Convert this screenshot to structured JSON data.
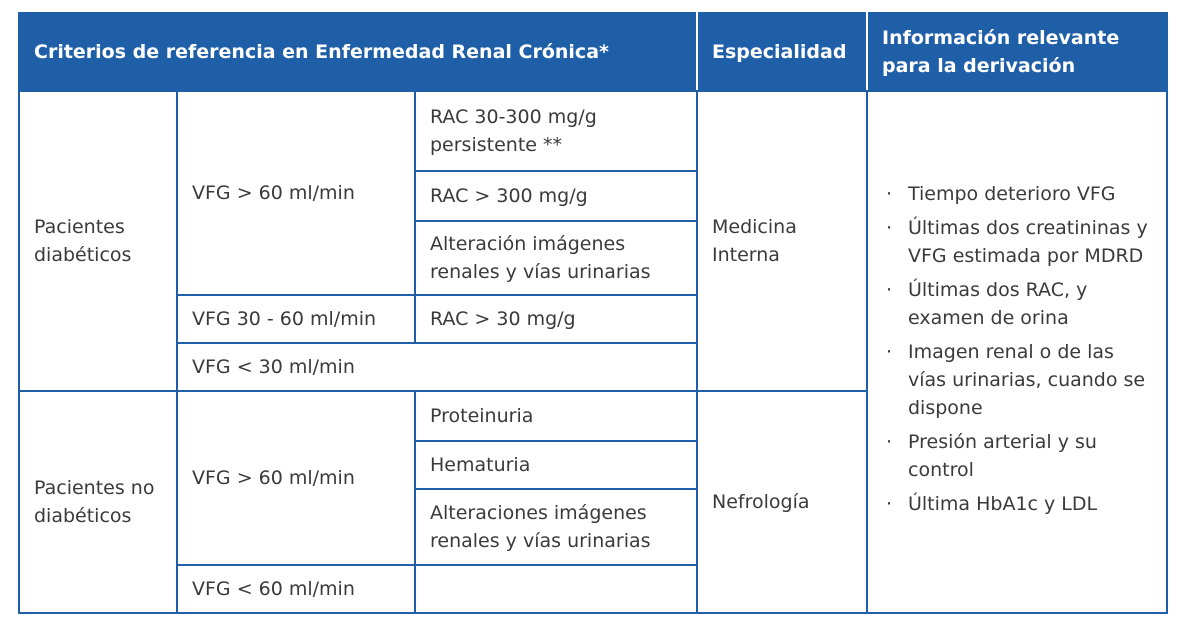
{
  "header": {
    "criteria": "Criterios de referencia en Enfermedad Renal Crónica*",
    "specialty": "Especialidad",
    "info": "Información relevante para la derivación"
  },
  "groups": [
    {
      "label": "Pacientes diabéticos"
    },
    {
      "label": "Pacientes no diabéticos"
    }
  ],
  "rows": {
    "vfg_gt60_diab": "VFG > 60 ml/min",
    "rac_30_300": "RAC 30-300 mg/g persistente **",
    "rac_gt300": "RAC > 300 mg/g",
    "alteracion_img": "Alteración imágenes renales y vías urinarias",
    "vfg_30_60": "VFG 30 - 60 ml/min",
    "rac_gt30": "RAC > 30 mg/g",
    "vfg_lt30": "VFG < 30 ml/min",
    "vfg_gt60_nodiab": "VFG > 60 ml/min",
    "proteinuria": "Proteinuria",
    "hematuria": "Hematuria",
    "alteraciones_img": "Alteraciones imágenes renales y vías urinarias",
    "vfg_lt60": "VFG < 60 ml/min"
  },
  "specialty": {
    "diabetic": "Medicina Interna",
    "non_diabetic": "Nefrología"
  },
  "info_bullet": "·",
  "info_items": [
    "Tiempo deterioro VFG",
    "Últimas dos creatininas y VFG estimada por MDRD",
    "Últimas dos RAC, y examen de orina",
    "Imagen renal o de las vías urinarias, cuando se dispone",
    "Presión arterial y su control",
    "Última HbA1c y LDL"
  ]
}
